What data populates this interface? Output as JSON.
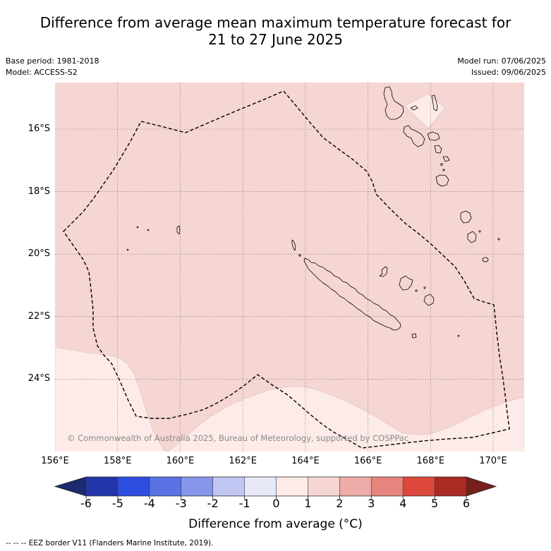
{
  "title": {
    "line1": "Difference from average mean maximum temperature forecast for",
    "line2": "21 to 27 June 2025"
  },
  "header": {
    "base_period": "Base period: 1981-2018",
    "model": "Model: ACCESS-S2",
    "model_run": "Model run: 07/06/2025",
    "issued": "Issued: 09/06/2025"
  },
  "map": {
    "lat_labels": [
      "16°S",
      "18°S",
      "20°S",
      "22°S",
      "24°S"
    ],
    "lon_labels": [
      "156°E",
      "158°E",
      "160°E",
      "162°E",
      "164°E",
      "166°E",
      "168°E",
      "170°E"
    ],
    "copyright": "© Commonwealth of Australia 2025, Bureau of Meteorology, supported by COSPPac",
    "shading": {
      "main_range": [
        1,
        2
      ],
      "southern_range": [
        0,
        1
      ]
    },
    "coastline_color": "#000000",
    "eez_color": "#000000"
  },
  "colorbar": {
    "ticks": [
      "-6",
      "-5",
      "-4",
      "-3",
      "-2",
      "-1",
      "0",
      "1",
      "2",
      "3",
      "4",
      "5",
      "6"
    ],
    "under_color": "#1c2a70",
    "colors": [
      "#2336a9",
      "#2e4de1",
      "#5a72e4",
      "#8696ea",
      "#c1c6f3",
      "#e7e9f9",
      "#fcebe8",
      "#f5d6d3",
      "#edaca8",
      "#e6857d",
      "#dc493c",
      "#ab2a22"
    ],
    "over_color": "#761f1a",
    "label": "Difference from average (°C)"
  },
  "footer": {
    "eez_note": "-- -- -- EEZ border V11 (Flanders Marine Institute, 2019)."
  }
}
